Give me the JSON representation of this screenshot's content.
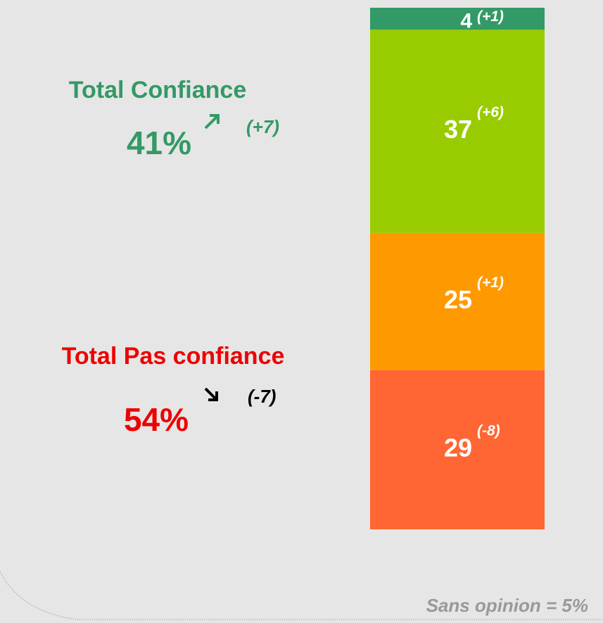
{
  "chart_data": {
    "type": "bar",
    "stacked": true,
    "categories": [
      null
    ],
    "series": [
      {
        "color": "#ff6633",
        "values": [
          29
        ],
        "annotation": "(-8)"
      },
      {
        "color": "#ff9900",
        "values": [
          25
        ],
        "annotation": "(+1)"
      },
      {
        "color": "#99cc00",
        "values": [
          37
        ],
        "annotation": "(+6)"
      },
      {
        "color": "#339966",
        "values": [
          4
        ],
        "annotation": "(+1)"
      }
    ],
    "totals": [
      {
        "label": "Total Confiance",
        "total": {
          "value": 41,
          "label": "41%"
        },
        "change": "(+7)",
        "color": "#339966",
        "direction": "up",
        "arrow_color": "#339966"
      },
      {
        "label": "Total Pas confiance",
        "total": {
          "value": 54,
          "label": "54%"
        },
        "change": "(-7)",
        "color": "#ee0000",
        "direction": "down",
        "arrow_color": "#000000"
      }
    ],
    "footnote": "Sans opinion = 5%"
  }
}
